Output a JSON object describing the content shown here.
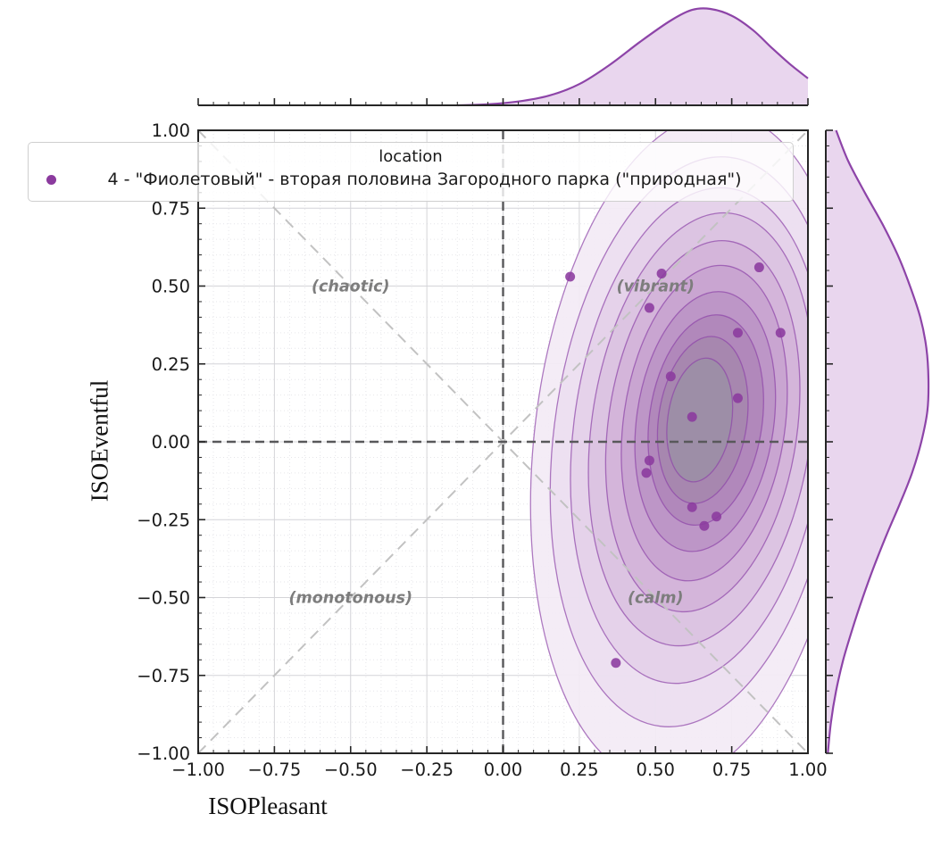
{
  "chart_data": {
    "type": "scatter",
    "subtype": "kde-jointplot-with-marginals",
    "xlabel": "ISOPleasant",
    "ylabel": "ISOEventful",
    "xlim": [
      -1,
      1
    ],
    "ylim": [
      -1,
      1
    ],
    "grid": "on",
    "xticks": [
      -1,
      -0.75,
      -0.5,
      -0.25,
      0,
      0.25,
      0.5,
      0.75,
      1
    ],
    "yticks": [
      -1,
      -0.75,
      -0.5,
      -0.25,
      0,
      0.25,
      0.5,
      0.75,
      1
    ],
    "xtick_labels": [
      "−1.00",
      "−0.75",
      "−0.50",
      "−0.25",
      "0.00",
      "0.25",
      "0.50",
      "0.75",
      "1.00"
    ],
    "ytick_labels": [
      "−1.00",
      "−0.75",
      "−0.50",
      "−0.25",
      "0.00",
      "0.25",
      "0.50",
      "0.75",
      "1.00"
    ],
    "minor_tick_step": 0.05,
    "legend": {
      "title": "location",
      "entries": [
        {
          "label": "4 - \"Фиолетовый\" - вторая половина Загородного парка (\"природная\")",
          "color": "#8b3a9e"
        }
      ]
    },
    "quadrant_labels": [
      {
        "text": "(chaotic)",
        "x": -0.5,
        "y": 0.5
      },
      {
        "text": "(vibrant)",
        "x": 0.5,
        "y": 0.5
      },
      {
        "text": "(monotonous)",
        "x": -0.5,
        "y": -0.5
      },
      {
        "text": "(calm)",
        "x": 0.5,
        "y": -0.5
      }
    ],
    "points": [
      [
        0.22,
        0.53
      ],
      [
        0.52,
        0.54
      ],
      [
        0.84,
        0.56
      ],
      [
        0.48,
        0.43
      ],
      [
        0.77,
        0.35
      ],
      [
        0.91,
        0.35
      ],
      [
        0.55,
        0.21
      ],
      [
        0.77,
        0.14
      ],
      [
        0.62,
        0.08
      ],
      [
        0.48,
        -0.06
      ],
      [
        0.47,
        -0.1
      ],
      [
        0.62,
        -0.21
      ],
      [
        0.7,
        -0.24
      ],
      [
        0.66,
        -0.27
      ],
      [
        0.37,
        -0.71
      ]
    ],
    "contour_levels": [
      {
        "cx": 0.62,
        "cy": -0.02,
        "rx": 0.52,
        "ry": 1.08,
        "rot": 6,
        "fill": "#f3eaf5"
      },
      {
        "cx": 0.63,
        "cy": 0.0,
        "rx": 0.465,
        "ry": 0.92,
        "rot": 7,
        "fill": "#ecdef0"
      },
      {
        "cx": 0.64,
        "cy": 0.02,
        "rx": 0.41,
        "ry": 0.8,
        "rot": 7,
        "fill": "#e4d0e9"
      },
      {
        "cx": 0.65,
        "cy": 0.04,
        "rx": 0.36,
        "ry": 0.7,
        "rot": 8,
        "fill": "#dbc2e1"
      },
      {
        "cx": 0.655,
        "cy": 0.05,
        "rx": 0.31,
        "ry": 0.6,
        "rot": 8,
        "fill": "#d2b3d9"
      },
      {
        "cx": 0.66,
        "cy": 0.06,
        "rx": 0.265,
        "ry": 0.51,
        "rot": 8,
        "fill": "#c8a4d0"
      },
      {
        "cx": 0.663,
        "cy": 0.065,
        "rx": 0.225,
        "ry": 0.42,
        "rot": 8,
        "fill": "#bc95c6"
      },
      {
        "cx": 0.665,
        "cy": 0.07,
        "rx": 0.185,
        "ry": 0.34,
        "rot": 8,
        "fill": "#b087ba"
      },
      {
        "cx": 0.655,
        "cy": 0.07,
        "rx": 0.145,
        "ry": 0.27,
        "rot": 8,
        "fill": "#a687ae"
      },
      {
        "cx": 0.645,
        "cy": 0.07,
        "rx": 0.105,
        "ry": 0.2,
        "rot": 8,
        "fill": "#9c8ea6"
      }
    ],
    "top_marginal_kde": [
      [
        -0.15,
        0.0
      ],
      [
        -0.05,
        0.01
      ],
      [
        0.05,
        0.04
      ],
      [
        0.15,
        0.1
      ],
      [
        0.25,
        0.22
      ],
      [
        0.35,
        0.42
      ],
      [
        0.45,
        0.66
      ],
      [
        0.55,
        0.88
      ],
      [
        0.62,
        0.99
      ],
      [
        0.68,
        1.0
      ],
      [
        0.75,
        0.93
      ],
      [
        0.82,
        0.78
      ],
      [
        0.88,
        0.6
      ],
      [
        0.94,
        0.43
      ],
      [
        1.0,
        0.28
      ]
    ],
    "right_marginal_kde": [
      [
        1.0,
        0.1
      ],
      [
        0.9,
        0.22
      ],
      [
        0.8,
        0.38
      ],
      [
        0.7,
        0.55
      ],
      [
        0.6,
        0.7
      ],
      [
        0.5,
        0.82
      ],
      [
        0.4,
        0.92
      ],
      [
        0.3,
        0.98
      ],
      [
        0.2,
        1.0
      ],
      [
        0.1,
        0.99
      ],
      [
        0.0,
        0.93
      ],
      [
        -0.1,
        0.84
      ],
      [
        -0.2,
        0.72
      ],
      [
        -0.3,
        0.59
      ],
      [
        -0.4,
        0.47
      ],
      [
        -0.5,
        0.36
      ],
      [
        -0.6,
        0.26
      ],
      [
        -0.7,
        0.17
      ],
      [
        -0.8,
        0.1
      ],
      [
        -0.9,
        0.05
      ],
      [
        -1.0,
        0.02
      ]
    ],
    "colors": {
      "point_color": "#8b3a9e",
      "contour_line_color": "#8d44a8",
      "marginal_fill": "#e9d6ee",
      "marginal_line": "#8d44a8",
      "zero_line_color": "#58585a",
      "diagonal_line_color": "#c2c2c2",
      "major_grid_color": "#d4d4d8",
      "minor_grid_color": "#e6e6ea",
      "spine_color": "#262626",
      "quadrant_label_color": "#7d7d7d",
      "tick_label_color": "#1a1a1a"
    }
  }
}
